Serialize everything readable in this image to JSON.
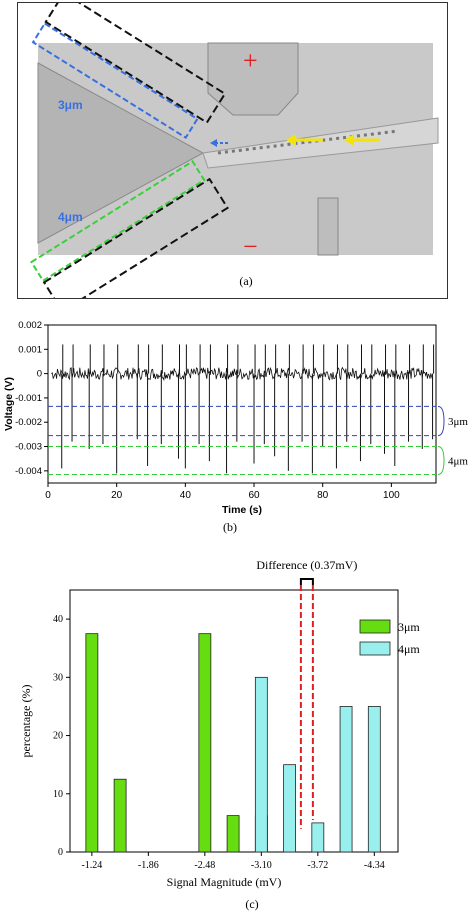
{
  "panel_a": {
    "caption": "(a)",
    "label_3um": "3μm",
    "label_4um": "4μm",
    "plus_sign": "+",
    "minus_sign": "−",
    "colors": {
      "blue": "#3a6fe0",
      "green": "#3ccf3c",
      "yellow": "#f2e30a",
      "red": "#e02020"
    }
  },
  "panel_b": {
    "caption": "(b)",
    "band_3um": "3μm",
    "band_4um": "4μm"
  },
  "panel_c": {
    "caption": "(c)",
    "difference_label": "Difference (0.37mV)"
  },
  "chart_data": [
    {
      "type": "line",
      "xlabel": "Time (s)",
      "ylabel": "Voltage (V)",
      "xlim": [
        0,
        113
      ],
      "ylim": [
        -0.0045,
        0.002
      ],
      "x_ticks": [
        0,
        20,
        40,
        60,
        80,
        100
      ],
      "y_ticks": [
        0.002,
        0.001,
        0,
        -0.001,
        -0.002,
        -0.003,
        -0.004
      ],
      "y_tick_labels": [
        "0.002",
        "0.001",
        "0",
        "-0.001",
        "-0.002",
        "-0.003",
        "-0.004"
      ],
      "noise_band": 0.00025,
      "series": [
        {
          "spikes_x": [
            4,
            7,
            12,
            16,
            20,
            26,
            29,
            33,
            38,
            40,
            44,
            47,
            52,
            55,
            60,
            63,
            66,
            70,
            74,
            77,
            80,
            84,
            87,
            91,
            94,
            98,
            101,
            105,
            109,
            112
          ],
          "spikes_y": [
            -0.0039,
            -0.0028,
            -0.0031,
            -0.0029,
            -0.0041,
            -0.0027,
            -0.0038,
            -0.0029,
            -0.0035,
            -0.0039,
            -0.0029,
            -0.0036,
            -0.0041,
            -0.0028,
            -0.0037,
            -0.0029,
            -0.0034,
            -0.004,
            -0.0028,
            -0.0041,
            -0.003,
            -0.0039,
            -0.0028,
            -0.0036,
            -0.0029,
            -0.0033,
            -0.0038,
            -0.0028,
            -0.0031,
            -0.0027
          ]
        }
      ],
      "reference_lines": [
        {
          "name": "3μm",
          "y": [
            -0.00135,
            -0.00255
          ],
          "color": "#3344bb"
        },
        {
          "name": "4μm",
          "y": [
            -0.003,
            -0.00415
          ],
          "color": "#33cc33"
        }
      ]
    },
    {
      "type": "bar",
      "xlabel": "Signal Magnitude (mV)",
      "ylabel": "percentage (%)",
      "ylim": [
        0,
        45
      ],
      "y_ticks": [
        0,
        10,
        20,
        30,
        40
      ],
      "x_tick_values": [
        -1.24,
        -1.86,
        -2.48,
        -3.1,
        -3.72,
        -4.34
      ],
      "x_tick_labels": [
        "-1.24",
        "-1.86",
        "-2.48",
        "-3.10",
        "-3.72",
        "-4.34"
      ],
      "difference_marker": -3.6,
      "series": [
        {
          "name": "3μm",
          "color": "#66dd11",
          "x": [
            -1.24,
            -1.55,
            -2.48,
            -2.79,
            -3.1
          ],
          "values": [
            37.5,
            12.5,
            37.5,
            6.25,
            6.25
          ]
        },
        {
          "name": "4μm",
          "color": "#99eeee",
          "x": [
            -2.79,
            -3.1,
            -3.41,
            -3.72,
            -4.03,
            -4.34
          ],
          "values": [
            0,
            30,
            15,
            5,
            25,
            25
          ]
        }
      ]
    }
  ]
}
